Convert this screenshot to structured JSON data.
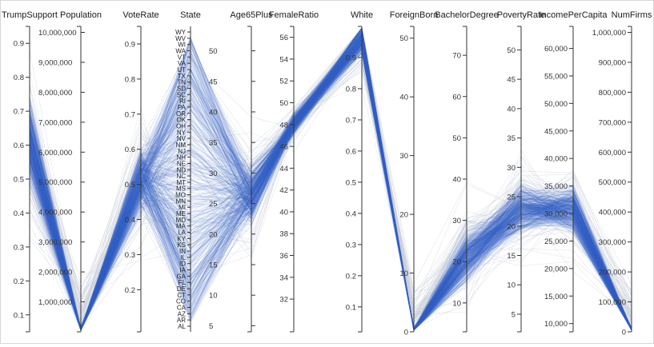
{
  "chart_data": {
    "type": "parallel-coordinates",
    "colors": {
      "foreground": "#3a63c7",
      "background": "#c9cfd9",
      "axis": "#333333"
    },
    "axes": [
      {
        "name": "TrumpSupport",
        "domain": [
          0.05,
          0.95
        ],
        "ticks": [
          0.1,
          0.2,
          0.3,
          0.4,
          0.5,
          0.6,
          0.7,
          0.8,
          0.9
        ],
        "tick_labels": [
          "0.1",
          "0.2",
          "0.3",
          "0.4",
          "0.5",
          "0.6",
          "0.7",
          "0.8",
          "0.9"
        ],
        "label_side": "left"
      },
      {
        "name": "Population",
        "domain": [
          0,
          10200000
        ],
        "ticks": [
          1000000,
          2000000,
          3000000,
          4000000,
          5000000,
          6000000,
          7000000,
          8000000,
          9000000,
          10000000
        ],
        "tick_labels": [
          "1,000,000",
          "2,000,000",
          "3,000,000",
          "4,000,000",
          "5,000,000",
          "6,000,000",
          "7,000,000",
          "8,000,000",
          "9,000,000",
          "10,000,000"
        ],
        "label_side": "right"
      },
      {
        "name": "VoteRate",
        "domain": [
          0.08,
          0.95
        ],
        "ticks": [
          0.2,
          0.3,
          0.4,
          0.5,
          0.6,
          0.7,
          0.8,
          0.9
        ],
        "tick_labels": [
          "0.2",
          "0.3",
          "0.4",
          "0.5",
          "0.6",
          "0.7",
          "0.8",
          "0.9"
        ],
        "label_side": "left"
      },
      {
        "name": "State",
        "categorical": true,
        "categories": [
          "AL",
          "AR",
          "AZ",
          "CA",
          "CO",
          "CT",
          "DE",
          "FL",
          "GA",
          "IA",
          "ID",
          "IL",
          "IN",
          "KS",
          "KY",
          "LA",
          "MA",
          "MD",
          "ME",
          "MI",
          "MN",
          "MO",
          "MS",
          "MT",
          "NC",
          "ND",
          "NE",
          "NH",
          "NJ",
          "NM",
          "NV",
          "NY",
          "OH",
          "OK",
          "OR",
          "PA",
          "RI",
          "SC",
          "SD",
          "TN",
          "TX",
          "UT",
          "VA",
          "VT",
          "WA",
          "WI",
          "WV",
          "WY"
        ],
        "label_side": "left"
      },
      {
        "name": "Age65Plus",
        "domain": [
          4,
          54
        ],
        "ticks": [
          5,
          10,
          15,
          20,
          25,
          30,
          35,
          40,
          45,
          50
        ],
        "tick_labels": [
          "5",
          "10",
          "15",
          "20",
          "25",
          "30",
          "35",
          "40",
          "45",
          "50"
        ],
        "label_side": "right"
      },
      {
        "name": "FemaleRatio",
        "domain": [
          29,
          57
        ],
        "ticks": [
          32,
          34,
          36,
          38,
          40,
          42,
          44,
          46,
          48,
          50,
          52,
          54,
          56
        ],
        "tick_labels": [
          "32",
          "34",
          "36",
          "38",
          "40",
          "42",
          "44",
          "46",
          "48",
          "50",
          "52",
          "54",
          "56"
        ],
        "label_side": "left"
      },
      {
        "name": "White",
        "domain": [
          0.02,
          1.0
        ],
        "ticks": [
          0.1,
          0.2,
          0.3,
          0.4,
          0.5,
          0.6,
          0.7,
          0.8,
          0.9
        ],
        "tick_labels": [
          "0.1",
          "0.2",
          "0.3",
          "0.4",
          "0.5",
          "0.6",
          "0.7",
          "0.8",
          "0.9"
        ],
        "label_side": "left"
      },
      {
        "name": "ForeignBorn",
        "domain": [
          0,
          52
        ],
        "ticks": [
          0,
          10,
          20,
          30,
          40,
          50
        ],
        "tick_labels": [
          "0",
          "10",
          "20",
          "30",
          "40",
          "50"
        ],
        "label_side": "left"
      },
      {
        "name": "BachelorDegree",
        "domain": [
          3,
          77
        ],
        "ticks": [
          10,
          20,
          30,
          40,
          50,
          60,
          70
        ],
        "tick_labels": [
          "10",
          "20",
          "30",
          "40",
          "50",
          "60",
          "70"
        ],
        "label_side": "left"
      },
      {
        "name": "PovertyRate",
        "domain": [
          2,
          54
        ],
        "ticks": [
          5,
          10,
          15,
          20,
          25,
          30,
          35,
          40,
          45,
          50
        ],
        "tick_labels": [
          "5",
          "10",
          "15",
          "20",
          "25",
          "30",
          "35",
          "40",
          "45",
          "50"
        ],
        "label_side": "left"
      },
      {
        "name": "IncomePerCapita",
        "domain": [
          8500,
          64000
        ],
        "ticks": [
          10000,
          15000,
          20000,
          25000,
          30000,
          35000,
          40000,
          45000,
          50000,
          55000,
          60000
        ],
        "tick_labels": [
          "10,000",
          "15,000",
          "20,000",
          "25,000",
          "30,000",
          "35,000",
          "40,000",
          "45,000",
          "50,000",
          "55,000",
          "60,000"
        ],
        "label_side": "left"
      },
      {
        "name": "NumFirms",
        "domain": [
          0,
          1020000
        ],
        "ticks": [
          0,
          100000,
          200000,
          300000,
          400000,
          500000,
          600000,
          700000,
          800000,
          900000,
          1000000
        ],
        "tick_labels": [
          "0",
          "100,000",
          "200,000",
          "300,000",
          "400,000",
          "500,000",
          "600,000",
          "700,000",
          "800,000",
          "900,000",
          "1,000,000"
        ],
        "label_side": "left"
      }
    ],
    "grid": false,
    "legend": "none"
  }
}
